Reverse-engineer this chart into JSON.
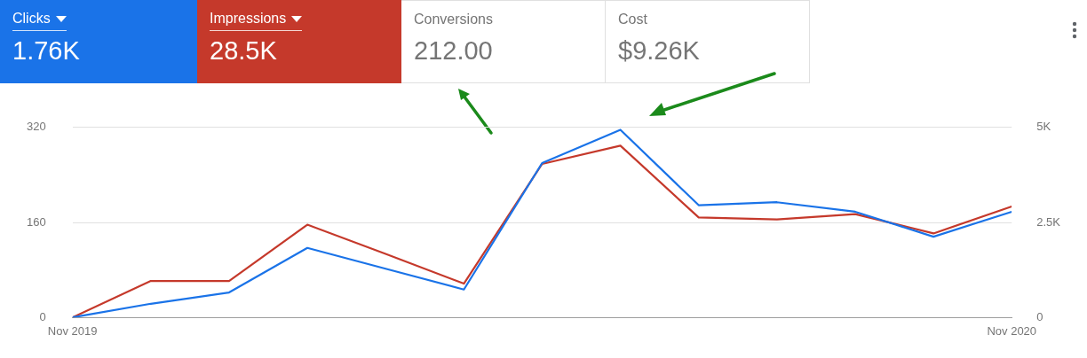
{
  "chart_data": {
    "type": "line",
    "x": [
      "2019-11",
      "2019-12",
      "2020-01",
      "2020-02",
      "2020-03",
      "2020-04",
      "2020-05",
      "2020-06",
      "2020-07",
      "2020-08",
      "2020-09",
      "2020-10",
      "2020-11"
    ],
    "series": [
      {
        "color": "#1a73e8",
        "values": [
          0,
          23,
          42,
          117,
          82,
          47,
          260,
          316,
          189,
          194,
          178,
          136,
          178
        ]
      },
      {
        "color": "#c5392b",
        "axis": "y2",
        "values": [
          0,
          960,
          960,
          2440,
          1670,
          890,
          4040,
          4520,
          2630,
          2580,
          2720,
          2210,
          2920
        ]
      }
    ],
    "xlim": [
      "2019-11",
      "2020-11"
    ],
    "xticks": [
      {
        "value": "2019-11",
        "label": "Nov 2019"
      },
      {
        "value": "2020-11",
        "label": "Nov 2020"
      }
    ],
    "ylim": [
      0,
      320
    ],
    "yticks": [
      0,
      160,
      320
    ],
    "y2lim": [
      0,
      5000
    ],
    "y2ticks": [
      0,
      {
        "value": 2500,
        "label": "2.5K"
      },
      {
        "value": 5000,
        "label": "5K"
      }
    ],
    "grid": "y",
    "legend": false,
    "marker": "none",
    "line_style": "solid",
    "annotations": [
      "Clicks",
      "1.76K",
      "Impressions",
      "28.5K",
      "Conversions",
      "212.00",
      "Cost",
      "$9.26K"
    ]
  }
}
